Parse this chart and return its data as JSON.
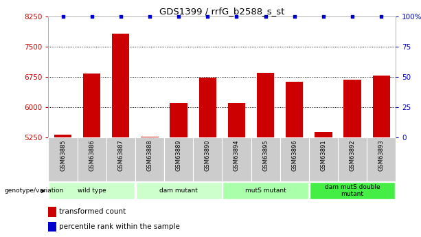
{
  "title": "GDS1399 / rrfG_b2588_s_st",
  "samples": [
    "GSM63885",
    "GSM63886",
    "GSM63887",
    "GSM63888",
    "GSM63889",
    "GSM63890",
    "GSM63894",
    "GSM63895",
    "GSM63896",
    "GSM63891",
    "GSM63892",
    "GSM63893"
  ],
  "red_values": [
    5320,
    6830,
    7820,
    5270,
    6100,
    6730,
    6100,
    6860,
    6630,
    5380,
    6680,
    6790
  ],
  "blue_values": [
    100,
    100,
    100,
    100,
    100,
    100,
    100,
    100,
    100,
    100,
    100,
    100
  ],
  "ylim_left": [
    5250,
    8250
  ],
  "ylim_right": [
    0,
    100
  ],
  "yticks_left": [
    5250,
    6000,
    6750,
    7500,
    8250
  ],
  "yticks_right": [
    0,
    25,
    50,
    75,
    100
  ],
  "ytick_right_labels": [
    "0",
    "25",
    "50",
    "75",
    "100%"
  ],
  "groups": [
    {
      "label": "wild type",
      "start": 0,
      "end": 3,
      "color": "#ccffcc"
    },
    {
      "label": "dam mutant",
      "start": 3,
      "end": 6,
      "color": "#ccffcc"
    },
    {
      "label": "mutS mutant",
      "start": 6,
      "end": 9,
      "color": "#aaffaa"
    },
    {
      "label": "dam mutS double\nmutant",
      "start": 9,
      "end": 12,
      "color": "#44ee44"
    }
  ],
  "bar_color": "#cc0000",
  "blue_color": "#0000cc",
  "bg_color": "#ffffff",
  "tick_color_left": "#cc0000",
  "tick_color_right": "#0000cc",
  "genotype_label": "genotype/variation",
  "legend_red": "transformed count",
  "legend_blue": "percentile rank within the sample",
  "grid_color": "#000000",
  "sample_bg": "#cccccc",
  "bar_width": 0.6
}
